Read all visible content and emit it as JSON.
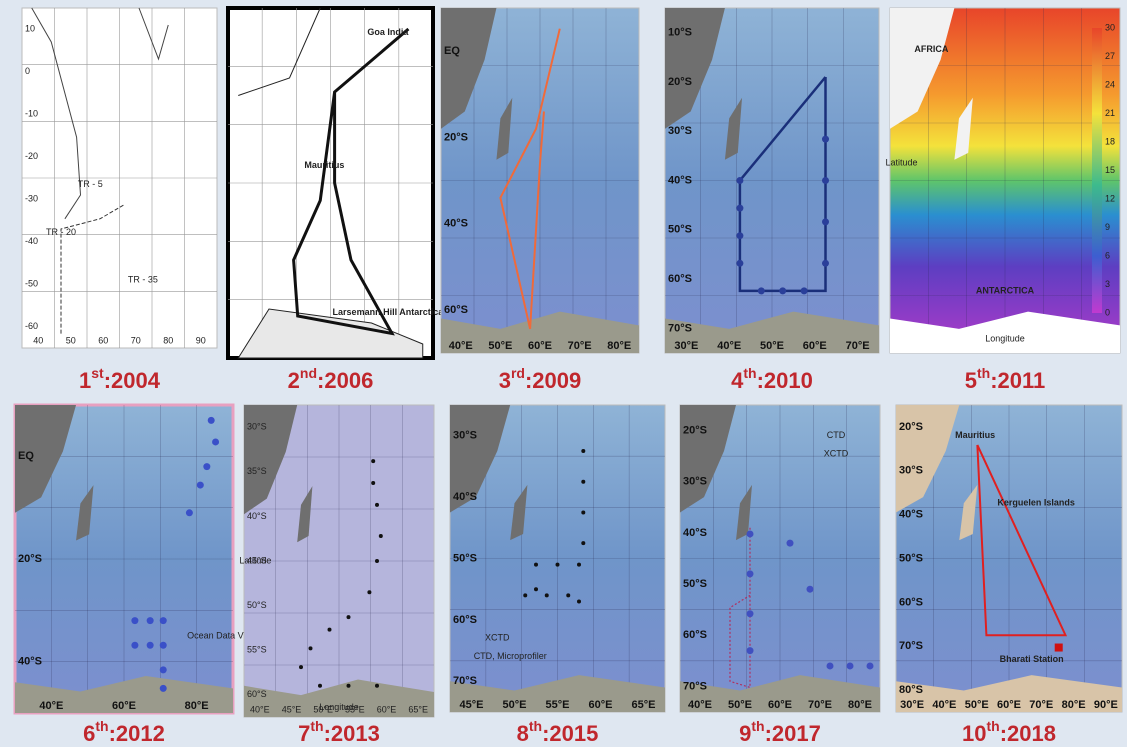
{
  "panels": [
    {
      "caption": {
        "number": "1",
        "suffix": "st",
        "year": ":2004"
      },
      "x_labels": [
        "40",
        "50",
        "60",
        "70",
        "80",
        "90"
      ],
      "y_labels": [
        "10",
        "0",
        "-10",
        "-20",
        "-30",
        "-40",
        "-50",
        "-60"
      ],
      "notes": [
        "TR - 5",
        "TR - 20",
        "TR - 35"
      ]
    },
    {
      "caption": {
        "number": "2",
        "suffix": "nd",
        "year": ":2006"
      },
      "x_labels": [],
      "y_labels": [],
      "notes": [
        "Goa India",
        "Mauritius",
        "Larsemann Hill Antarctica"
      ]
    },
    {
      "caption": {
        "number": "3",
        "suffix": "rd",
        "year": ":2009"
      },
      "x_labels": [
        "40°E",
        "50°E",
        "60°E",
        "70°E",
        "80°E"
      ],
      "y_labels": [
        "EQ",
        "20°S",
        "40°S",
        "60°S"
      ],
      "notes": []
    },
    {
      "caption": {
        "number": "4",
        "suffix": "th",
        "year": ":2010"
      },
      "x_labels": [
        "30°E",
        "40°E",
        "50°E",
        "60°E",
        "70°E"
      ],
      "y_labels": [
        "10°S",
        "20°S",
        "30°S",
        "40°S",
        "50°S",
        "60°S",
        "70°S"
      ],
      "notes": []
    },
    {
      "caption": {
        "number": "5",
        "suffix": "th",
        "year": ":2011"
      },
      "x_labels": [],
      "y_labels": [],
      "notes": [
        "AFRICA",
        "ANTARCTICA",
        "Latitude",
        "Longitude"
      ],
      "colorbar": [
        "30",
        "27",
        "24",
        "21",
        "18",
        "15",
        "12",
        "9",
        "6",
        "3",
        "0"
      ]
    },
    {
      "caption": {
        "number": "6",
        "suffix": "th",
        "year": ":2012"
      },
      "x_labels": [
        "40°E",
        "60°E",
        "80°E"
      ],
      "y_labels": [
        "EQ",
        "20°S",
        "40°S"
      ],
      "notes": [
        "Ocean Data View"
      ]
    },
    {
      "caption": {
        "number": "7",
        "suffix": "th",
        "year": ":2013"
      },
      "x_labels": [
        "40°E",
        "45°E",
        "50°E",
        "55°E",
        "60°E",
        "65°E"
      ],
      "y_labels": [
        "30°S",
        "35°S",
        "40°S",
        "45°S",
        "50°S",
        "55°S",
        "60°S"
      ],
      "notes": [
        "Latitude",
        "Longitude"
      ]
    },
    {
      "caption": {
        "number": "8",
        "suffix": "th",
        "year": ":2015"
      },
      "x_labels": [
        "45°E",
        "50°E",
        "55°E",
        "60°E",
        "65°E"
      ],
      "y_labels": [
        "30°S",
        "40°S",
        "50°S",
        "60°S",
        "70°S"
      ],
      "notes": [
        "XCTD",
        "CTD, Microprofiler"
      ]
    },
    {
      "caption": {
        "number": "9",
        "suffix": "th",
        "year": ":2017"
      },
      "x_labels": [
        "40°E",
        "50°E",
        "60°E",
        "70°E",
        "80°E"
      ],
      "y_labels": [
        "20°S",
        "30°S",
        "40°S",
        "50°S",
        "60°S",
        "70°S"
      ],
      "notes": [
        "CTD",
        "XCTD"
      ]
    },
    {
      "caption": {
        "number": "10",
        "suffix": "th",
        "year": ":2018"
      },
      "x_labels": [
        "30°E",
        "40°E",
        "50°E",
        "60°E",
        "70°E",
        "80°E",
        "90°E"
      ],
      "y_labels": [
        "20°S",
        "30°S",
        "40°S",
        "50°S",
        "60°S",
        "70°S",
        "80°S"
      ],
      "notes": [
        "Mauritius",
        "Kerguelen Islands",
        "Bharati Station"
      ]
    }
  ]
}
